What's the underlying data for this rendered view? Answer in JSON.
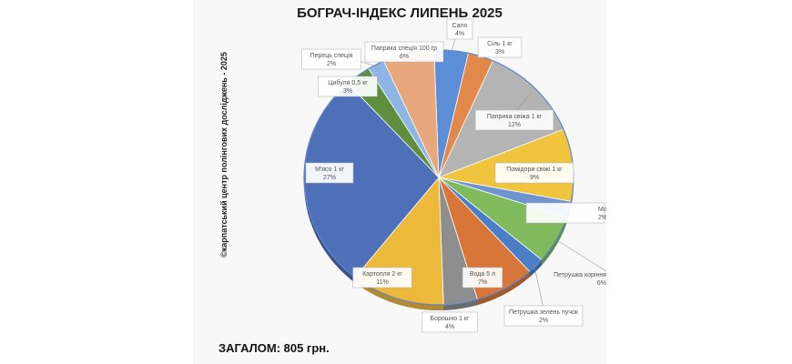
{
  "chart_data": {
    "type": "pie",
    "title": "БОГРАЧ-ІНДЕКС ЛИПЕНЬ 2025",
    "slices": [
      {
        "label": "Сало",
        "pct_label": "4%",
        "value": 4,
        "color": "#5b8ed6"
      },
      {
        "label": "Сіль 1 кг",
        "pct_label": "3%",
        "value": 3,
        "color": "#e2884a"
      },
      {
        "label": "Паприка свіжа 1 кг",
        "pct_label": "12%",
        "value": 12,
        "color": "#b4b4b4"
      },
      {
        "label": "Помідори свіжі 1 кг",
        "pct_label": "9%",
        "value": 9,
        "color": "#f0c43c"
      },
      {
        "label": "Морква коріння пучок",
        "pct_label": "2%",
        "value": 2,
        "color": "#6f94d2"
      },
      {
        "label": "Петрушка коріння",
        "pct_label": "6%",
        "value": 6,
        "color": "#7fba5c"
      },
      {
        "label": "Петрушка зелень пучок",
        "pct_label": "2%",
        "value": 2,
        "color": "#4a7ec6"
      },
      {
        "label": "Вода 5 л",
        "pct_label": "7%",
        "value": 7,
        "color": "#d8763a"
      },
      {
        "label": "Борошно 1 кг",
        "pct_label": "4%",
        "value": 4,
        "color": "#8e8e8e"
      },
      {
        "label": "Картопля 2 кг",
        "pct_label": "11%",
        "value": 11,
        "color": "#edb93a"
      },
      {
        "label": "М'ясо 1 кг",
        "pct_label": "27%",
        "value": 27,
        "color": "#4d70b8"
      },
      {
        "label": "Цибуля 0,5 кг",
        "pct_label": "3%",
        "value": 3,
        "color": "#5e8e3e"
      },
      {
        "label": "Перець спеція",
        "pct_label": "2%",
        "value": 2,
        "color": "#8fb5e6"
      },
      {
        "label": "Паприка спеція 100 гр",
        "pct_label": "6%",
        "value": 6,
        "color": "#e8a87c"
      }
    ]
  },
  "source_note": "©карпатський центр полінгових досліджень - 2025",
  "total": "ЗАГАЛОМ: 805 грн."
}
